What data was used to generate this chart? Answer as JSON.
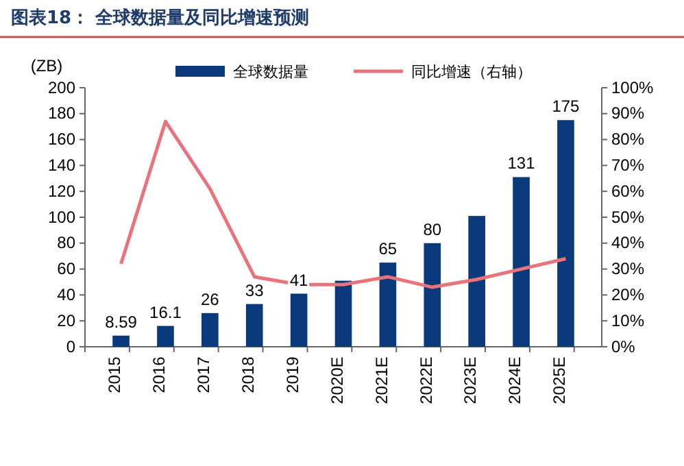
{
  "chart_data": {
    "type": "bar",
    "title": "图表18：  全球数据量及同比增速预测",
    "ylabel": "(ZB)",
    "categories": [
      "2015",
      "2016",
      "2017",
      "2018",
      "2019",
      "2020E",
      "2021E",
      "2022E",
      "2023E",
      "2024E",
      "2025E"
    ],
    "series": [
      {
        "name": "全球数据量",
        "color": "#0a3a7c",
        "values": [
          8.59,
          16.1,
          26,
          33,
          41,
          51,
          65,
          80,
          101,
          131,
          175
        ],
        "value_labels": [
          "8.59",
          "16.1",
          "26",
          "33",
          "41",
          null,
          "65",
          "80",
          null,
          "131",
          "175"
        ]
      },
      {
        "name": "同比增速（右轴）",
        "type": "line",
        "axis": "y2",
        "color": "#e8737b",
        "values": [
          32,
          87,
          61,
          27,
          24,
          24,
          27,
          23,
          26,
          30,
          34
        ]
      }
    ],
    "ylim": [
      0,
      200
    ],
    "yticks": [
      0,
      20,
      40,
      60,
      80,
      100,
      120,
      140,
      160,
      180,
      200
    ],
    "y2lim": [
      0,
      100
    ],
    "y2ticks": [
      {
        "value": 0,
        "label": "0%"
      },
      {
        "value": 10,
        "label": "10%"
      },
      {
        "value": 20,
        "label": "20%"
      },
      {
        "value": 30,
        "label": "30%"
      },
      {
        "value": 40,
        "label": "40%"
      },
      {
        "value": 50,
        "label": "50%"
      },
      {
        "value": 60,
        "label": "60%"
      },
      {
        "value": 70,
        "label": "70%"
      },
      {
        "value": 80,
        "label": "80%"
      },
      {
        "value": 90,
        "label": "90%"
      },
      {
        "value": 100,
        "label": "100%"
      }
    ],
    "legend": "top",
    "grid": false,
    "marker": "none",
    "line_style": "solid"
  }
}
